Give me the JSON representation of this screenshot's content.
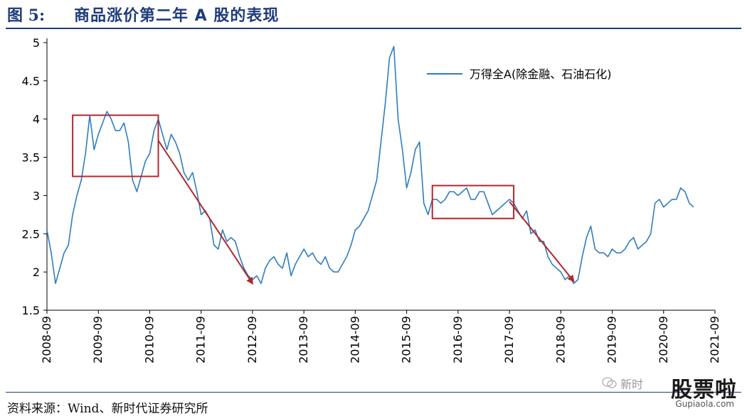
{
  "figure": {
    "number": "图 5:",
    "title": "商品涨价第二年 A 股的表现",
    "source": "资料来源：Wind、新时代证券研究所"
  },
  "watermark": {
    "wechat_text": "新时",
    "brand": "股票啦",
    "url": "Gupiaola.com"
  },
  "chart_data": {
    "type": "line",
    "title": "",
    "xlabel": "",
    "ylabel": "",
    "ylim": [
      1.5,
      5
    ],
    "yticks": [
      "5",
      "4.5",
      "4",
      "3.5",
      "3",
      "2.5",
      "2",
      "1.5"
    ],
    "xlim": [
      "2008-09",
      "2021-09"
    ],
    "xticks": [
      "2008-09",
      "2009-09",
      "2010-09",
      "2011-09",
      "2012-09",
      "2013-09",
      "2014-09",
      "2015-09",
      "2016-09",
      "2017-09",
      "2018-09",
      "2019-09",
      "2020-09",
      "2021-09"
    ],
    "grid": false,
    "legend_position": "top-right",
    "series": [
      {
        "name": "万得全A(除金融、石油石化)",
        "color": "#2e7dbf",
        "points": [
          [
            "2008-09",
            2.55
          ],
          [
            "2008-10",
            2.25
          ],
          [
            "2008-11",
            1.85
          ],
          [
            "2008-12",
            2.05
          ],
          [
            "2009-01",
            2.25
          ],
          [
            "2009-02",
            2.35
          ],
          [
            "2009-03",
            2.75
          ],
          [
            "2009-04",
            3.0
          ],
          [
            "2009-05",
            3.2
          ],
          [
            "2009-06",
            3.55
          ],
          [
            "2009-07",
            4.05
          ],
          [
            "2009-08",
            3.6
          ],
          [
            "2009-09",
            3.8
          ],
          [
            "2009-10",
            3.95
          ],
          [
            "2009-11",
            4.1
          ],
          [
            "2009-12",
            4.0
          ],
          [
            "2010-01",
            3.85
          ],
          [
            "2010-02",
            3.85
          ],
          [
            "2010-03",
            3.95
          ],
          [
            "2010-04",
            3.7
          ],
          [
            "2010-05",
            3.2
          ],
          [
            "2010-06",
            3.05
          ],
          [
            "2010-07",
            3.25
          ],
          [
            "2010-08",
            3.45
          ],
          [
            "2010-09",
            3.55
          ],
          [
            "2010-10",
            3.85
          ],
          [
            "2010-11",
            4.0
          ],
          [
            "2010-12",
            3.8
          ],
          [
            "2011-01",
            3.6
          ],
          [
            "2011-02",
            3.8
          ],
          [
            "2011-03",
            3.7
          ],
          [
            "2011-04",
            3.55
          ],
          [
            "2011-05",
            3.3
          ],
          [
            "2011-06",
            3.2
          ],
          [
            "2011-07",
            3.3
          ],
          [
            "2011-08",
            3.05
          ],
          [
            "2011-09",
            2.75
          ],
          [
            "2011-10",
            2.8
          ],
          [
            "2011-11",
            2.7
          ],
          [
            "2011-12",
            2.35
          ],
          [
            "2012-01",
            2.3
          ],
          [
            "2012-02",
            2.55
          ],
          [
            "2012-03",
            2.4
          ],
          [
            "2012-04",
            2.45
          ],
          [
            "2012-05",
            2.4
          ],
          [
            "2012-06",
            2.2
          ],
          [
            "2012-07",
            2.05
          ],
          [
            "2012-08",
            1.95
          ],
          [
            "2012-09",
            1.9
          ],
          [
            "2012-10",
            1.95
          ],
          [
            "2012-11",
            1.85
          ],
          [
            "2012-12",
            2.05
          ],
          [
            "2013-01",
            2.15
          ],
          [
            "2013-02",
            2.2
          ],
          [
            "2013-03",
            2.1
          ],
          [
            "2013-04",
            2.05
          ],
          [
            "2013-05",
            2.25
          ],
          [
            "2013-06",
            1.95
          ],
          [
            "2013-07",
            2.1
          ],
          [
            "2013-08",
            2.2
          ],
          [
            "2013-09",
            2.3
          ],
          [
            "2013-10",
            2.2
          ],
          [
            "2013-11",
            2.25
          ],
          [
            "2013-12",
            2.15
          ],
          [
            "2014-01",
            2.1
          ],
          [
            "2014-02",
            2.2
          ],
          [
            "2014-03",
            2.05
          ],
          [
            "2014-04",
            2.0
          ],
          [
            "2014-05",
            2.0
          ],
          [
            "2014-06",
            2.1
          ],
          [
            "2014-07",
            2.2
          ],
          [
            "2014-08",
            2.35
          ],
          [
            "2014-09",
            2.55
          ],
          [
            "2014-10",
            2.6
          ],
          [
            "2014-11",
            2.7
          ],
          [
            "2014-12",
            2.8
          ],
          [
            "2015-01",
            3.0
          ],
          [
            "2015-02",
            3.2
          ],
          [
            "2015-03",
            3.7
          ],
          [
            "2015-04",
            4.2
          ],
          [
            "2015-05",
            4.8
          ],
          [
            "2015-06",
            4.95
          ],
          [
            "2015-07",
            4.0
          ],
          [
            "2015-08",
            3.6
          ],
          [
            "2015-09",
            3.1
          ],
          [
            "2015-10",
            3.3
          ],
          [
            "2015-11",
            3.6
          ],
          [
            "2015-12",
            3.7
          ],
          [
            "2016-01",
            2.9
          ],
          [
            "2016-02",
            2.75
          ],
          [
            "2016-03",
            2.95
          ],
          [
            "2016-04",
            2.95
          ],
          [
            "2016-05",
            2.9
          ],
          [
            "2016-06",
            2.95
          ],
          [
            "2016-07",
            3.05
          ],
          [
            "2016-08",
            3.05
          ],
          [
            "2016-09",
            3.0
          ],
          [
            "2016-10",
            3.05
          ],
          [
            "2016-11",
            3.1
          ],
          [
            "2016-12",
            2.95
          ],
          [
            "2017-01",
            2.95
          ],
          [
            "2017-02",
            3.05
          ],
          [
            "2017-03",
            3.05
          ],
          [
            "2017-04",
            2.9
          ],
          [
            "2017-05",
            2.75
          ],
          [
            "2017-06",
            2.8
          ],
          [
            "2017-07",
            2.85
          ],
          [
            "2017-08",
            2.9
          ],
          [
            "2017-09",
            2.95
          ],
          [
            "2017-10",
            2.9
          ],
          [
            "2017-11",
            2.8
          ],
          [
            "2017-12",
            2.7
          ],
          [
            "2018-01",
            2.8
          ],
          [
            "2018-02",
            2.5
          ],
          [
            "2018-03",
            2.55
          ],
          [
            "2018-04",
            2.4
          ],
          [
            "2018-05",
            2.4
          ],
          [
            "2018-06",
            2.2
          ],
          [
            "2018-07",
            2.1
          ],
          [
            "2018-08",
            2.05
          ],
          [
            "2018-09",
            2.0
          ],
          [
            "2018-10",
            1.9
          ],
          [
            "2018-11",
            1.95
          ],
          [
            "2018-12",
            1.85
          ],
          [
            "2019-01",
            1.9
          ],
          [
            "2019-02",
            2.2
          ],
          [
            "2019-03",
            2.45
          ],
          [
            "2019-04",
            2.6
          ],
          [
            "2019-05",
            2.3
          ],
          [
            "2019-06",
            2.25
          ],
          [
            "2019-07",
            2.25
          ],
          [
            "2019-08",
            2.2
          ],
          [
            "2019-09",
            2.3
          ],
          [
            "2019-10",
            2.25
          ],
          [
            "2019-11",
            2.25
          ],
          [
            "2019-12",
            2.3
          ],
          [
            "2020-01",
            2.4
          ],
          [
            "2020-02",
            2.45
          ],
          [
            "2020-03",
            2.3
          ],
          [
            "2020-04",
            2.35
          ],
          [
            "2020-05",
            2.4
          ],
          [
            "2020-06",
            2.5
          ],
          [
            "2020-07",
            2.9
          ],
          [
            "2020-08",
            2.95
          ],
          [
            "2020-09",
            2.85
          ],
          [
            "2020-10",
            2.9
          ],
          [
            "2020-11",
            2.95
          ],
          [
            "2020-12",
            2.95
          ],
          [
            "2021-01",
            3.1
          ],
          [
            "2021-02",
            3.05
          ],
          [
            "2021-03",
            2.9
          ],
          [
            "2021-04",
            2.85
          ]
        ]
      }
    ],
    "annotations": [
      {
        "type": "box",
        "x0": "2009-03",
        "x1": "2010-11",
        "y0": 3.25,
        "y1": 4.05,
        "color": "#b0282e"
      },
      {
        "type": "box",
        "x0": "2016-03",
        "x1": "2017-10",
        "y0": 2.7,
        "y1": 3.13,
        "color": "#b0282e"
      },
      {
        "type": "arrow",
        "x0": "2010-11",
        "y0": 3.72,
        "x1": "2012-09",
        "y1": 1.85,
        "color": "#b0282e"
      },
      {
        "type": "arrow",
        "x0": "2017-09",
        "y0": 2.92,
        "x1": "2018-12",
        "y1": 1.88,
        "color": "#b0282e"
      }
    ]
  }
}
